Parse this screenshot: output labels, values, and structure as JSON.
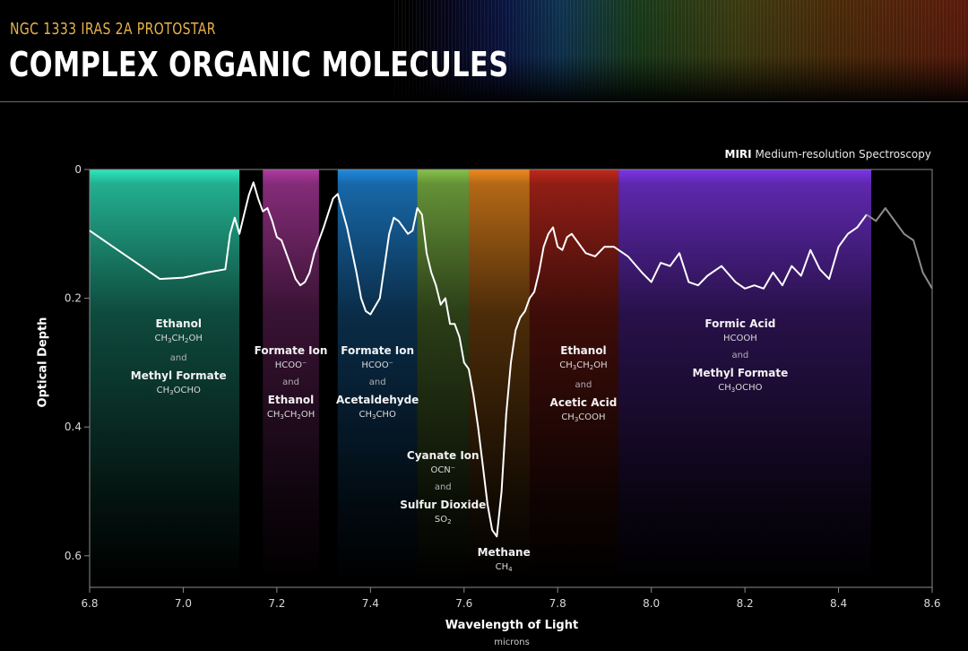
{
  "header": {
    "subtitle": "NGC 1333 IRAS 2A PROTOSTAR",
    "title": "COMPLEX ORGANIC MOLECULES",
    "instrument_bold": "MIRI",
    "instrument_rest": " Medium-resolution Spectroscopy"
  },
  "chart_data": {
    "type": "line",
    "xlabel": "Wavelength of Light",
    "xunit": "microns",
    "ylabel": "Optical Depth",
    "xlim": [
      6.8,
      8.6
    ],
    "ylim": [
      0.65,
      0
    ],
    "y_inverted": true,
    "xticks": [
      "6.8",
      "7.0",
      "7.2",
      "7.4",
      "7.6",
      "7.8",
      "8.0",
      "8.2",
      "8.4",
      "8.6"
    ],
    "yticks": [
      "0",
      "0.2",
      "0.4",
      "0.6"
    ],
    "grid": false,
    "series": [
      {
        "x": [
          6.8,
          6.85,
          6.9,
          6.95,
          7.0,
          7.02,
          7.05,
          7.09,
          7.1,
          7.11,
          7.12,
          7.13,
          7.14,
          7.15,
          7.16,
          7.17,
          7.18,
          7.19,
          7.2,
          7.21,
          7.22,
          7.23,
          7.24,
          7.25,
          7.26,
          7.27,
          7.28,
          7.3,
          7.32,
          7.33,
          7.35,
          7.37,
          7.38,
          7.39,
          7.4,
          7.42,
          7.43,
          7.44,
          7.45,
          7.46,
          7.47,
          7.48,
          7.49,
          7.5,
          7.51,
          7.52,
          7.53,
          7.54,
          7.55,
          7.56,
          7.57,
          7.58,
          7.59,
          7.6,
          7.61,
          7.62,
          7.63,
          7.64,
          7.65,
          7.66,
          7.67,
          7.68,
          7.69,
          7.7,
          7.71,
          7.72,
          7.73,
          7.74,
          7.75,
          7.76,
          7.77,
          7.78,
          7.79,
          7.8,
          7.81,
          7.82,
          7.83,
          7.84,
          7.85,
          7.86,
          7.88,
          7.9,
          7.92,
          7.95,
          7.98,
          8.0,
          8.02,
          8.04,
          8.06,
          8.08,
          8.1,
          8.12,
          8.15,
          8.18,
          8.2,
          8.22,
          8.24,
          8.26,
          8.28,
          8.3,
          8.32,
          8.34,
          8.36,
          8.38,
          8.4,
          8.42,
          8.44,
          8.46,
          8.48,
          8.5,
          8.52,
          8.54,
          8.56,
          8.58,
          8.6
        ],
        "y": [
          0.095,
          0.12,
          0.145,
          0.17,
          0.168,
          0.165,
          0.16,
          0.155,
          0.1,
          0.075,
          0.1,
          0.07,
          0.04,
          0.02,
          0.045,
          0.065,
          0.06,
          0.08,
          0.105,
          0.11,
          0.13,
          0.15,
          0.17,
          0.18,
          0.175,
          0.16,
          0.13,
          0.09,
          0.045,
          0.038,
          0.09,
          0.16,
          0.2,
          0.22,
          0.225,
          0.2,
          0.15,
          0.1,
          0.075,
          0.08,
          0.09,
          0.1,
          0.095,
          0.06,
          0.07,
          0.13,
          0.16,
          0.18,
          0.21,
          0.2,
          0.24,
          0.24,
          0.26,
          0.3,
          0.31,
          0.35,
          0.4,
          0.46,
          0.52,
          0.56,
          0.57,
          0.5,
          0.38,
          0.3,
          0.25,
          0.23,
          0.22,
          0.2,
          0.19,
          0.16,
          0.12,
          0.1,
          0.09,
          0.12,
          0.125,
          0.105,
          0.1,
          0.11,
          0.12,
          0.13,
          0.135,
          0.12,
          0.12,
          0.135,
          0.16,
          0.175,
          0.145,
          0.15,
          0.13,
          0.175,
          0.18,
          0.165,
          0.15,
          0.175,
          0.185,
          0.18,
          0.185,
          0.16,
          0.18,
          0.15,
          0.165,
          0.125,
          0.155,
          0.17,
          0.12,
          0.1,
          0.09,
          0.07,
          0.08,
          0.06,
          0.08,
          0.1,
          0.11,
          0.16,
          0.185
        ]
      }
    ],
    "bands": [
      {
        "x0": 6.8,
        "x1": 7.12,
        "color": "#2ee8bf"
      },
      {
        "x0": 7.17,
        "x1": 7.29,
        "color": "#b03aa0"
      },
      {
        "x0": 7.33,
        "x1": 7.5,
        "color": "#1f8ae0"
      },
      {
        "x0": 7.5,
        "x1": 7.61,
        "color": "#86c24a"
      },
      {
        "x0": 7.61,
        "x1": 7.74,
        "color": "#ef8a1d"
      },
      {
        "x0": 7.74,
        "x1": 7.93,
        "color": "#c0281c"
      },
      {
        "x0": 7.93,
        "x1": 8.47,
        "color": "#7d35e6"
      }
    ],
    "labels": [
      {
        "x": 6.99,
        "y": 0.23,
        "name": "Ethanol",
        "formula": [
          "CH",
          "3",
          "CH",
          "2",
          "OH"
        ],
        "name2": "Methyl Formate",
        "formula2": [
          "CH",
          "3",
          "OCHO"
        ]
      },
      {
        "x": 7.23,
        "y": 0.272,
        "name": "Formate Ion",
        "formula": [
          "HCOO",
          "",
          "⁻"
        ],
        "name2": "Ethanol",
        "formula2": [
          "CH",
          "3",
          "CH",
          "2",
          "OH"
        ]
      },
      {
        "x": 7.415,
        "y": 0.272,
        "name": "Formate Ion",
        "formula": [
          "HCOO",
          "",
          "⁻"
        ],
        "name2": "Acetaldehyde",
        "formula2": [
          "CH",
          "3",
          "CHO"
        ]
      },
      {
        "x": 7.555,
        "y": 0.435,
        "name": "Cyanate Ion",
        "formula": [
          "OCN",
          "",
          "⁻"
        ],
        "name2": "Sulfur Dioxide",
        "formula2": [
          "SO",
          "2"
        ]
      },
      {
        "x": 7.685,
        "y": 0.585,
        "name": "Methane",
        "formula": [
          "CH",
          "4"
        ]
      },
      {
        "x": 7.855,
        "y": 0.272,
        "name": "Ethanol",
        "formula": [
          "CH",
          "3",
          "CH",
          "2",
          "OH"
        ],
        "name2": "Acetic Acid",
        "formula2": [
          "CH",
          "3",
          "COOH"
        ]
      },
      {
        "x": 8.19,
        "y": 0.23,
        "name": "Formic Acid",
        "formula": [
          "HCOOH"
        ],
        "name2": "Methyl Formate",
        "formula2": [
          "CH",
          "3",
          "OCHO"
        ]
      }
    ]
  }
}
